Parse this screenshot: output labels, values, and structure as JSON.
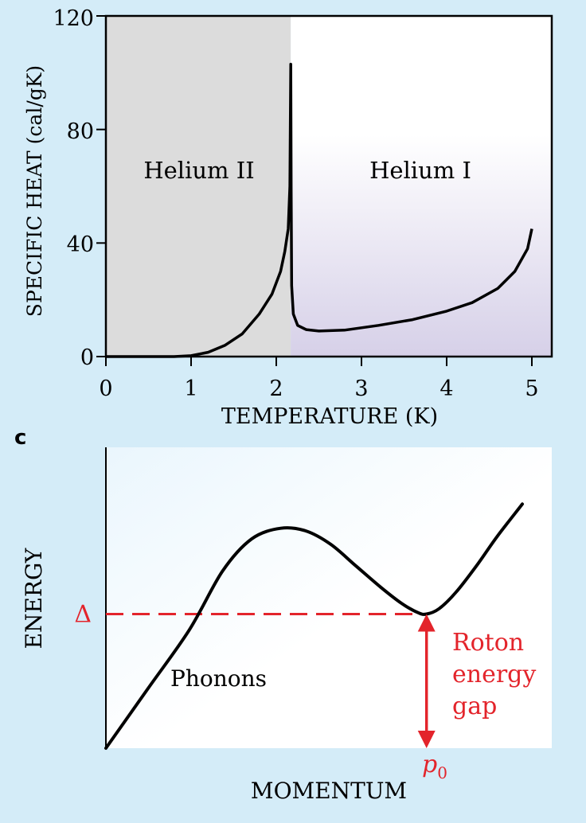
{
  "colors": {
    "page_background": "#d4ecf8",
    "helium_ii_fill": "#dcdcdc",
    "helium_i_fill_top": "#ffffff",
    "helium_i_fill_bottom": "#d6d0e8",
    "curve": "#000000",
    "roton_accent": "#e3242b"
  },
  "chart_data": [
    {
      "type": "line",
      "title": "",
      "xlabel": "TEMPERATURE (K)",
      "ylabel": "SPECIFIC HEAT (cal/gK)",
      "xlim": [
        0,
        5.5
      ],
      "ylim": [
        0,
        120
      ],
      "x_ticks": [
        "0",
        "1",
        "2",
        "3",
        "4",
        "5"
      ],
      "y_ticks": [
        "0",
        "40",
        "80",
        "120"
      ],
      "lambda_point": 2.17,
      "regions": [
        {
          "label": "Helium II",
          "x_range": [
            0,
            2.17
          ]
        },
        {
          "label": "Helium I",
          "x_range": [
            2.17,
            5.5
          ]
        }
      ],
      "series": [
        {
          "x": [
            0,
            0.8,
            1.0,
            1.2,
            1.4,
            1.6,
            1.8,
            1.95,
            2.05,
            2.1,
            2.14,
            2.16,
            2.17,
            2.175,
            2.18,
            2.2,
            2.25,
            2.35,
            2.5,
            2.8,
            3.2,
            3.6,
            4.0,
            4.3,
            4.6,
            4.8,
            4.95,
            5.0
          ],
          "y": [
            0,
            0,
            0.3,
            1.5,
            4,
            8,
            15,
            22,
            30,
            37,
            45,
            60,
            103,
            58,
            25,
            15,
            11,
            9.5,
            9,
            9.3,
            11,
            13,
            16,
            19,
            24,
            30,
            38,
            45
          ]
        }
      ]
    },
    {
      "type": "line",
      "panel_label": "c",
      "xlabel": "MOMENTUM",
      "ylabel": "ENERGY",
      "xlim": [
        0,
        10
      ],
      "ylim": [
        0,
        10
      ],
      "gap_level_label": "Δ",
      "gap_level": 5,
      "p0_label": "p",
      "p0_subscript": "0",
      "p0": 7.7,
      "phonon_label": "Phonons",
      "roton_label_lines": [
        "Roton",
        "energy",
        "gap"
      ],
      "series": [
        {
          "x": [
            0,
            1.0,
            2.0,
            2.8,
            3.5,
            4.2,
            4.8,
            5.4,
            6.0,
            6.6,
            7.1,
            7.5,
            7.7,
            8.0,
            8.4,
            8.9,
            9.4,
            10.0
          ],
          "y": [
            0,
            2.2,
            4.4,
            6.6,
            7.8,
            8.2,
            8.1,
            7.6,
            6.8,
            6.0,
            5.4,
            5.05,
            5.0,
            5.2,
            5.8,
            6.8,
            7.9,
            9.1
          ]
        }
      ]
    }
  ]
}
